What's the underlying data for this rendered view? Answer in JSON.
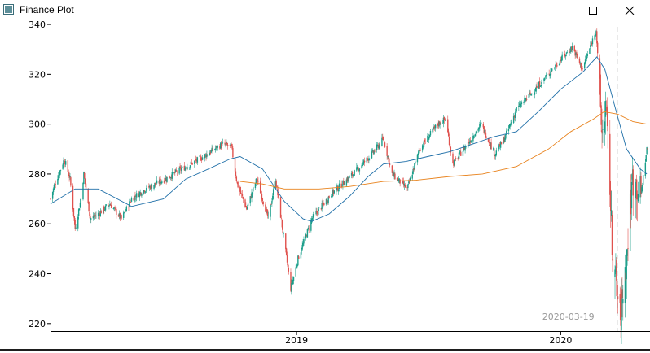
{
  "window": {
    "title": "Finance Plot",
    "buttons": {
      "minimize": "minimize-icon",
      "maximize": "maximize-icon",
      "close": "close-icon"
    }
  },
  "chart_data": {
    "type": "candlestick",
    "ylim": [
      217,
      341
    ],
    "yticks": [
      220,
      240,
      260,
      280,
      300,
      320,
      340
    ],
    "xlim": [
      "2018-01-26",
      "2020-04-30"
    ],
    "xticks": [
      {
        "date": "2019-01-01",
        "label": "2019"
      },
      {
        "date": "2020-01-01",
        "label": "2020"
      }
    ],
    "crosshair": {
      "date": "2020-03-19",
      "label": "2020-03-19"
    },
    "colors": {
      "up": "#1a9e8a",
      "down": "#e0524e",
      "ma_short": "#1f6fa8",
      "ma_long": "#e8821c",
      "crosshair": "#888888",
      "axis": "#000000"
    },
    "close_anchors": [
      [
        "2018-01-26",
        270
      ],
      [
        "2018-02-01",
        276
      ],
      [
        "2018-02-09",
        282
      ],
      [
        "2018-02-14",
        286
      ],
      [
        "2018-02-22",
        278
      ],
      [
        "2018-03-01",
        258
      ],
      [
        "2018-03-09",
        270
      ],
      [
        "2018-03-13",
        280
      ],
      [
        "2018-03-22",
        262
      ],
      [
        "2018-04-02",
        264
      ],
      [
        "2018-04-18",
        268
      ],
      [
        "2018-05-04",
        262
      ],
      [
        "2018-05-18",
        270
      ],
      [
        "2018-06-06",
        274
      ],
      [
        "2018-06-20",
        276
      ],
      [
        "2018-07-04",
        278
      ],
      [
        "2018-07-26",
        282
      ],
      [
        "2018-08-20",
        286
      ],
      [
        "2018-09-20",
        292
      ],
      [
        "2018-10-03",
        291
      ],
      [
        "2018-10-11",
        276
      ],
      [
        "2018-10-24",
        266
      ],
      [
        "2018-11-07",
        278
      ],
      [
        "2018-11-23",
        262
      ],
      [
        "2018-12-03",
        278
      ],
      [
        "2018-12-24",
        234
      ],
      [
        "2019-01-03",
        246
      ],
      [
        "2019-01-22",
        262
      ],
      [
        "2019-02-18",
        272
      ],
      [
        "2019-03-20",
        280
      ],
      [
        "2019-04-15",
        288
      ],
      [
        "2019-05-01",
        294
      ],
      [
        "2019-05-13",
        280
      ],
      [
        "2019-06-03",
        274
      ],
      [
        "2019-06-20",
        290
      ],
      [
        "2019-07-15",
        300
      ],
      [
        "2019-07-26",
        302
      ],
      [
        "2019-08-05",
        284
      ],
      [
        "2019-08-20",
        290
      ],
      [
        "2019-09-13",
        300
      ],
      [
        "2019-10-02",
        288
      ],
      [
        "2019-10-15",
        294
      ],
      [
        "2019-11-01",
        306
      ],
      [
        "2019-11-27",
        314
      ],
      [
        "2019-12-20",
        322
      ],
      [
        "2020-01-17",
        331
      ],
      [
        "2020-01-31",
        322
      ],
      [
        "2020-02-19",
        338
      ],
      [
        "2020-02-27",
        296
      ],
      [
        "2020-03-03",
        308
      ],
      [
        "2020-03-09",
        276
      ],
      [
        "2020-03-12",
        250
      ],
      [
        "2020-03-16",
        240
      ],
      [
        "2020-03-23",
        222
      ],
      [
        "2020-04-01",
        246
      ],
      [
        "2020-04-09",
        278
      ],
      [
        "2020-04-21",
        272
      ],
      [
        "2020-04-29",
        290
      ]
    ],
    "ma_short": [
      [
        "2018-01-26",
        268
      ],
      [
        "2018-03-01",
        274
      ],
      [
        "2018-04-02",
        274
      ],
      [
        "2018-05-18",
        267
      ],
      [
        "2018-07-01",
        270
      ],
      [
        "2018-08-01",
        278
      ],
      [
        "2018-09-01",
        282
      ],
      [
        "2018-10-01",
        286
      ],
      [
        "2018-10-15",
        287
      ],
      [
        "2018-11-15",
        282
      ],
      [
        "2018-12-15",
        269
      ],
      [
        "2019-01-10",
        262
      ],
      [
        "2019-01-22",
        261
      ],
      [
        "2019-02-15",
        264
      ],
      [
        "2019-03-15",
        271
      ],
      [
        "2019-04-10",
        279
      ],
      [
        "2019-05-01",
        284
      ],
      [
        "2019-06-01",
        285
      ],
      [
        "2019-07-01",
        287
      ],
      [
        "2019-08-01",
        289
      ],
      [
        "2019-09-01",
        292
      ],
      [
        "2019-10-01",
        295
      ],
      [
        "2019-11-01",
        297
      ],
      [
        "2019-12-01",
        305
      ],
      [
        "2020-01-01",
        314
      ],
      [
        "2020-02-01",
        321
      ],
      [
        "2020-02-20",
        327
      ],
      [
        "2020-03-02",
        322
      ],
      [
        "2020-03-15",
        308
      ],
      [
        "2020-04-01",
        290
      ],
      [
        "2020-04-20",
        282
      ],
      [
        "2020-04-29",
        280
      ]
    ],
    "ma_long": [
      [
        "2018-10-15",
        277
      ],
      [
        "2018-11-15",
        276
      ],
      [
        "2018-12-15",
        274
      ],
      [
        "2019-02-01",
        274
      ],
      [
        "2019-03-15",
        275
      ],
      [
        "2019-05-01",
        277
      ],
      [
        "2019-06-15",
        277.5
      ],
      [
        "2019-08-01",
        279
      ],
      [
        "2019-09-15",
        280
      ],
      [
        "2019-11-01",
        283
      ],
      [
        "2019-12-15",
        290
      ],
      [
        "2020-01-15",
        297
      ],
      [
        "2020-02-15",
        302
      ],
      [
        "2020-03-01",
        305
      ],
      [
        "2020-03-20",
        304
      ],
      [
        "2020-04-10",
        301
      ],
      [
        "2020-04-29",
        300
      ]
    ]
  }
}
